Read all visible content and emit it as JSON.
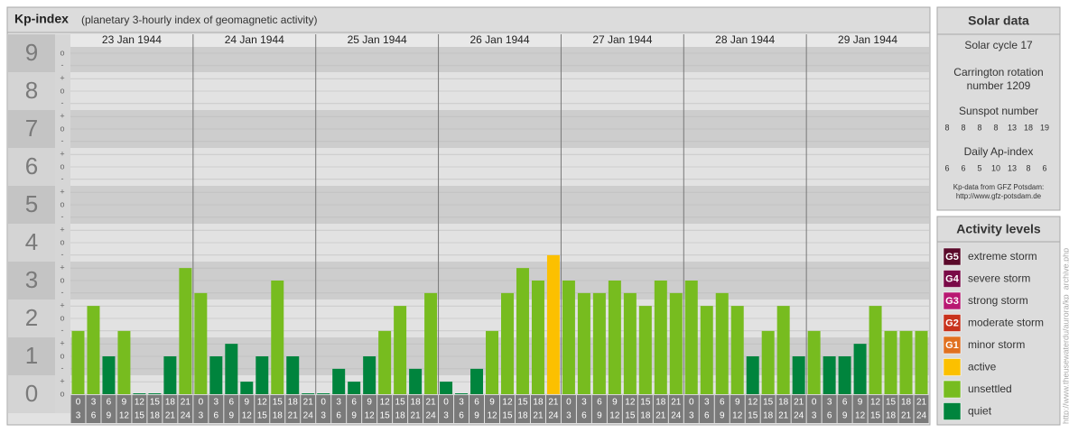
{
  "chart_data": {
    "type": "bar",
    "title": "Kp-index",
    "subtitle": "(planetary 3-hourly index of geomagnetic activity)",
    "days": [
      "23 Jan 1944",
      "24 Jan 1944",
      "25 Jan 1944",
      "26 Jan 1944",
      "27 Jan 1944",
      "28 Jan 1944",
      "29 Jan 1944"
    ],
    "hour_slots": [
      [
        0,
        3
      ],
      [
        3,
        6
      ],
      [
        6,
        9
      ],
      [
        9,
        12
      ],
      [
        12,
        15
      ],
      [
        15,
        18
      ],
      [
        18,
        21
      ],
      [
        21,
        24
      ]
    ],
    "values": [
      1.67,
      2.33,
      1,
      1.67,
      0,
      0,
      1,
      3.33,
      2.67,
      1,
      1.33,
      0.33,
      1,
      3,
      1,
      0,
      0,
      0.67,
      0.33,
      1,
      1.67,
      2.33,
      0.67,
      2.67,
      0.33,
      0,
      0.67,
      1.67,
      2.67,
      3.33,
      3,
      3.67,
      3,
      2.67,
      2.67,
      3,
      2.67,
      2.33,
      3,
      2.67,
      3,
      2.33,
      2.67,
      2.33,
      1,
      1.67,
      2.33,
      1,
      1.67,
      1,
      1,
      1.33,
      2.33,
      1.67,
      1.67,
      1.67
    ],
    "colors": [
      "#77bc1f",
      "#77bc1f",
      "#00843d",
      "#77bc1f",
      "#00843d",
      "#00843d",
      "#00843d",
      "#77bc1f",
      "#77bc1f",
      "#00843d",
      "#00843d",
      "#00843d",
      "#00843d",
      "#77bc1f",
      "#00843d",
      "#00843d",
      "#00843d",
      "#00843d",
      "#00843d",
      "#00843d",
      "#77bc1f",
      "#77bc1f",
      "#00843d",
      "#77bc1f",
      "#00843d",
      "#00843d",
      "#00843d",
      "#77bc1f",
      "#77bc1f",
      "#77bc1f",
      "#77bc1f",
      "#fcc000",
      "#77bc1f",
      "#77bc1f",
      "#77bc1f",
      "#77bc1f",
      "#77bc1f",
      "#77bc1f",
      "#77bc1f",
      "#77bc1f",
      "#77bc1f",
      "#77bc1f",
      "#77bc1f",
      "#77bc1f",
      "#00843d",
      "#77bc1f",
      "#77bc1f",
      "#00843d",
      "#77bc1f",
      "#00843d",
      "#00843d",
      "#00843d",
      "#77bc1f",
      "#77bc1f",
      "#77bc1f",
      "#77bc1f"
    ],
    "ylim": [
      -0.5,
      9.5
    ],
    "yticks": [
      0,
      1,
      2,
      3,
      4,
      5,
      6,
      7,
      8,
      9
    ],
    "yticks_minor": [
      {
        "value": 0,
        "label": "o"
      },
      {
        "value": 0.33,
        "label": "+"
      },
      {
        "value": 0.67,
        "label": "-"
      },
      {
        "value": 1,
        "label": "o"
      },
      {
        "value": 1.33,
        "label": "+"
      },
      {
        "value": 1.67,
        "label": "-"
      },
      {
        "value": 2,
        "label": "o"
      },
      {
        "value": 2.33,
        "label": "+"
      },
      {
        "value": 2.67,
        "label": "-"
      },
      {
        "value": 3,
        "label": "o"
      },
      {
        "value": 3.33,
        "label": "+"
      },
      {
        "value": 3.67,
        "label": "-"
      },
      {
        "value": 4,
        "label": "o"
      },
      {
        "value": 4.33,
        "label": "+"
      },
      {
        "value": 4.67,
        "label": "-"
      },
      {
        "value": 5,
        "label": "o"
      },
      {
        "value": 5.33,
        "label": "+"
      },
      {
        "value": 5.67,
        "label": "-"
      },
      {
        "value": 6,
        "label": "o"
      },
      {
        "value": 6.33,
        "label": "+"
      },
      {
        "value": 6.67,
        "label": "-"
      },
      {
        "value": 7,
        "label": "o"
      },
      {
        "value": 7.33,
        "label": "+"
      },
      {
        "value": 7.67,
        "label": "-"
      },
      {
        "value": 8,
        "label": "o"
      },
      {
        "value": 8.33,
        "label": "+"
      },
      {
        "value": 8.67,
        "label": "-"
      },
      {
        "value": 9,
        "label": "o"
      }
    ]
  },
  "solar_data": {
    "title": "Solar data",
    "solar_cycle": "Solar cycle 17",
    "carrington": [
      "Carrington rotation",
      "number 1209"
    ],
    "sunspot_title": "Sunspot number",
    "sunspot_numbers": [
      8,
      8,
      8,
      8,
      13,
      18,
      19
    ],
    "ap_title": "Daily Ap-index",
    "ap_values": [
      6,
      6,
      5,
      10,
      13,
      8,
      6
    ],
    "source": "Kp-data from GFZ Potsdam:",
    "source_url": "http://www.gfz-potsdam.de"
  },
  "activity_levels": {
    "title": "Activity levels",
    "items": [
      {
        "badge": "G5",
        "label": "extreme storm",
        "color": "#5a0a2a"
      },
      {
        "badge": "G4",
        "label": "severe storm",
        "color": "#7a0a48"
      },
      {
        "badge": "G3",
        "label": "strong storm",
        "color": "#b81872"
      },
      {
        "badge": "G2",
        "label": "moderate storm",
        "color": "#c8321c"
      },
      {
        "badge": "G1",
        "label": "minor storm",
        "color": "#e07020"
      },
      {
        "label": "active",
        "color": "#fcc000"
      },
      {
        "label": "unsettled",
        "color": "#77bc1f"
      },
      {
        "label": "quiet",
        "color": "#00843d"
      }
    ]
  },
  "side_url": "http://www.theusewaterdu/aurora/kp_archive.php"
}
